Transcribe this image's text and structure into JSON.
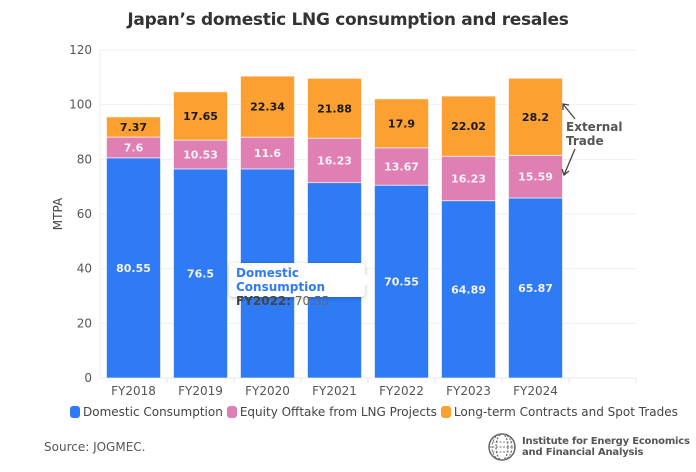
{
  "chart_data": {
    "type": "bar",
    "stacked": true,
    "title": "Japan’s domestic LNG consumption and resales",
    "xlabel": "",
    "ylabel": "MTPA",
    "ylim": [
      0,
      120
    ],
    "yticks": [
      0,
      20,
      40,
      60,
      80,
      100,
      120
    ],
    "grid": true,
    "categories": [
      "FY2018",
      "FY2019",
      "FY2020",
      "FY2021",
      "FY2022",
      "FY2023",
      "FY2024"
    ],
    "series": [
      {
        "name": "Domestic Consumption",
        "color": "#2f7bf5",
        "label_style": "light",
        "values": [
          80.55,
          76.5,
          76.5,
          71.5,
          70.55,
          64.89,
          65.87
        ],
        "labels": [
          "80.55",
          "76.5",
          "",
          "",
          "70.55",
          "64.89",
          "65.87"
        ]
      },
      {
        "name": "Equity Offtake from LNG Projects",
        "color": "#e07fb4",
        "label_style": "light",
        "values": [
          7.6,
          10.53,
          11.6,
          16.23,
          13.67,
          16.23,
          15.59
        ],
        "labels": [
          "7.6",
          "10.53",
          "11.6",
          "16.23",
          "13.67",
          "16.23",
          "15.59"
        ]
      },
      {
        "name": "Long-term Contracts and Spot Trades",
        "color": "#fba031",
        "label_style": "dark",
        "values": [
          7.37,
          17.65,
          22.34,
          21.88,
          17.9,
          22.02,
          28.2
        ],
        "labels": [
          "7.37",
          "17.65",
          "22.34",
          "21.88",
          "17.9",
          "22.02",
          "28.2"
        ]
      }
    ],
    "legend_position": "bottom",
    "annotation": {
      "text_lines": [
        "External",
        "Trade"
      ],
      "points_to": "FY2024 orange and pink segments"
    }
  },
  "tooltip": {
    "series": "Domestic Consumption",
    "category": "FY2022:",
    "value": "70.55"
  },
  "source": "Source: JOGMEC.",
  "logo": {
    "line1": "Institute for Energy Economics",
    "line2": "and Financial Analysis",
    "icon": "globe-icon"
  }
}
